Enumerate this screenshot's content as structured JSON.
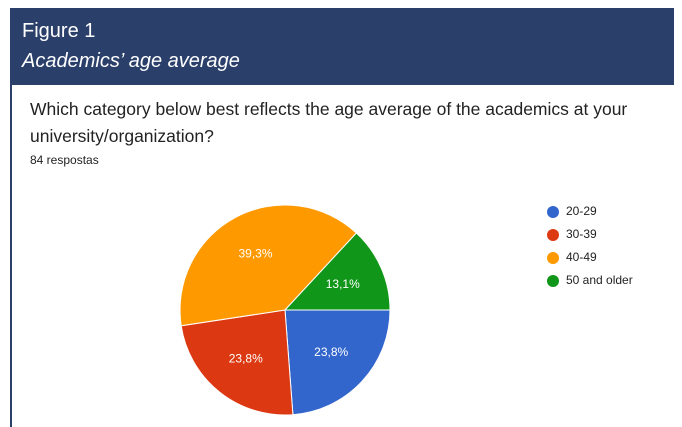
{
  "figure": {
    "label": "Figure 1",
    "caption": "Academics’ age average"
  },
  "chart_data": {
    "type": "pie",
    "title": "Which category below best reflects the age average of the academics at your university/organization?",
    "subtitle": "84 respostas",
    "categories": [
      "20-29",
      "30-39",
      "40-49",
      "50 and older"
    ],
    "values": [
      23.8,
      23.8,
      39.3,
      13.1
    ],
    "value_labels": [
      "23,8%",
      "23,8%",
      "39,3%",
      "13,1%"
    ],
    "colors": [
      "#3366cc",
      "#dc3912",
      "#ff9900",
      "#109618"
    ],
    "legend": "right"
  }
}
